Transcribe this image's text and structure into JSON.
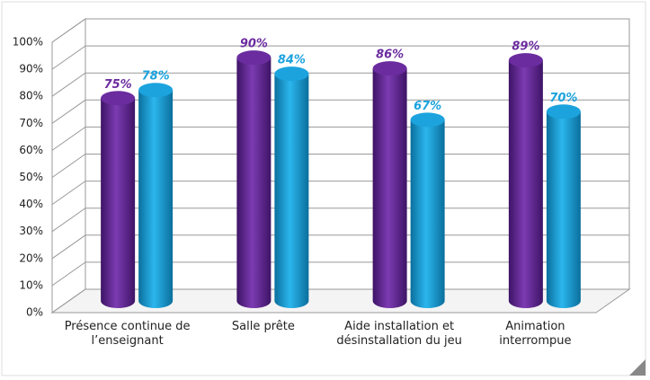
{
  "chart_data": {
    "type": "bar3d",
    "categories": [
      "Présence continue de l’enseignant",
      "Salle prête",
      "Aide installation et désinstallation du jeu",
      "Animation interrompue"
    ],
    "series": [
      {
        "color": "#6b2c9f",
        "values": [
          75,
          90,
          86,
          89
        ],
        "value_labels": [
          "75%",
          "90%",
          "86%",
          "89%"
        ]
      },
      {
        "color": "#1ca3de",
        "values": [
          78,
          84,
          67,
          70
        ],
        "value_labels": [
          "78%",
          "84%",
          "67%",
          "70%"
        ]
      }
    ],
    "ylim": [
      0,
      100
    ],
    "yticks": [
      {
        "value": 0,
        "label": "0%"
      },
      {
        "value": 10,
        "label": "10%"
      },
      {
        "value": 20,
        "label": "20%"
      },
      {
        "value": 30,
        "label": "30%"
      },
      {
        "value": 40,
        "label": "40%"
      },
      {
        "value": 50,
        "label": "50%"
      },
      {
        "value": 60,
        "label": "60%"
      },
      {
        "value": 70,
        "label": "70%"
      },
      {
        "value": 80,
        "label": "80%"
      },
      {
        "value": 90,
        "label": "90%"
      },
      {
        "value": 100,
        "label": "100%"
      }
    ],
    "grid": true
  }
}
